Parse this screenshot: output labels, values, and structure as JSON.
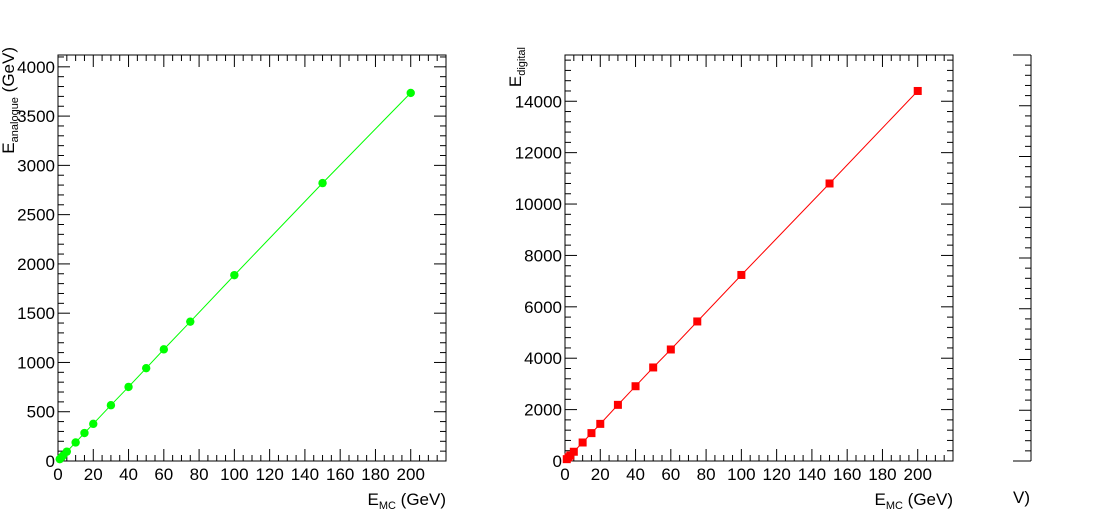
{
  "chart_data": [
    {
      "type": "line",
      "marker": "circle",
      "color": "#00ff00",
      "xlabel": "E",
      "xlabel_sub": "MC",
      "xlabel_unit": " (GeV)",
      "ylabel": "E",
      "ylabel_sub": "analogue",
      "ylabel_unit": " (GeV)",
      "xlim": [
        0,
        220
      ],
      "ylim": [
        0,
        4120
      ],
      "xticks": [
        "0",
        "20",
        "40",
        "60",
        "80",
        "100",
        "120",
        "140",
        "160",
        "180",
        "200"
      ],
      "yticks": [
        "0",
        "500",
        "1000",
        "1500",
        "2000",
        "2500",
        "3000",
        "3500",
        "4000"
      ],
      "series": [
        {
          "x": [
            1,
            2,
            3,
            5,
            10,
            15,
            20,
            30,
            40,
            50,
            60,
            75,
            100,
            150,
            200
          ],
          "y": [
            19,
            38,
            57,
            95,
            188,
            284,
            377,
            566,
            752,
            942,
            1133,
            1414,
            1886,
            2820,
            3735
          ]
        }
      ]
    },
    {
      "type": "line",
      "marker": "square",
      "color": "#ff0000",
      "xlabel": "E",
      "xlabel_sub": "MC",
      "xlabel_unit": " (GeV)",
      "ylabel": "E",
      "ylabel_sub": "digital",
      "ylabel_unit": "",
      "xlim": [
        0,
        220
      ],
      "ylim": [
        0,
        15800
      ],
      "xticks": [
        "0",
        "20",
        "40",
        "60",
        "80",
        "100",
        "120",
        "140",
        "160",
        "180",
        "200"
      ],
      "yticks": [
        "0",
        "2000",
        "4000",
        "6000",
        "8000",
        "10000",
        "12000",
        "14000"
      ],
      "series": [
        {
          "x": [
            1,
            2,
            3,
            5,
            10,
            15,
            20,
            30,
            40,
            50,
            60,
            75,
            100,
            150,
            200
          ],
          "y": [
            72,
            144,
            216,
            360,
            720,
            1085,
            1445,
            2185,
            2910,
            3640,
            4340,
            5430,
            7240,
            10800,
            14400
          ]
        }
      ]
    }
  ],
  "third_panel": {
    "xlabel_fragment": "V)"
  }
}
